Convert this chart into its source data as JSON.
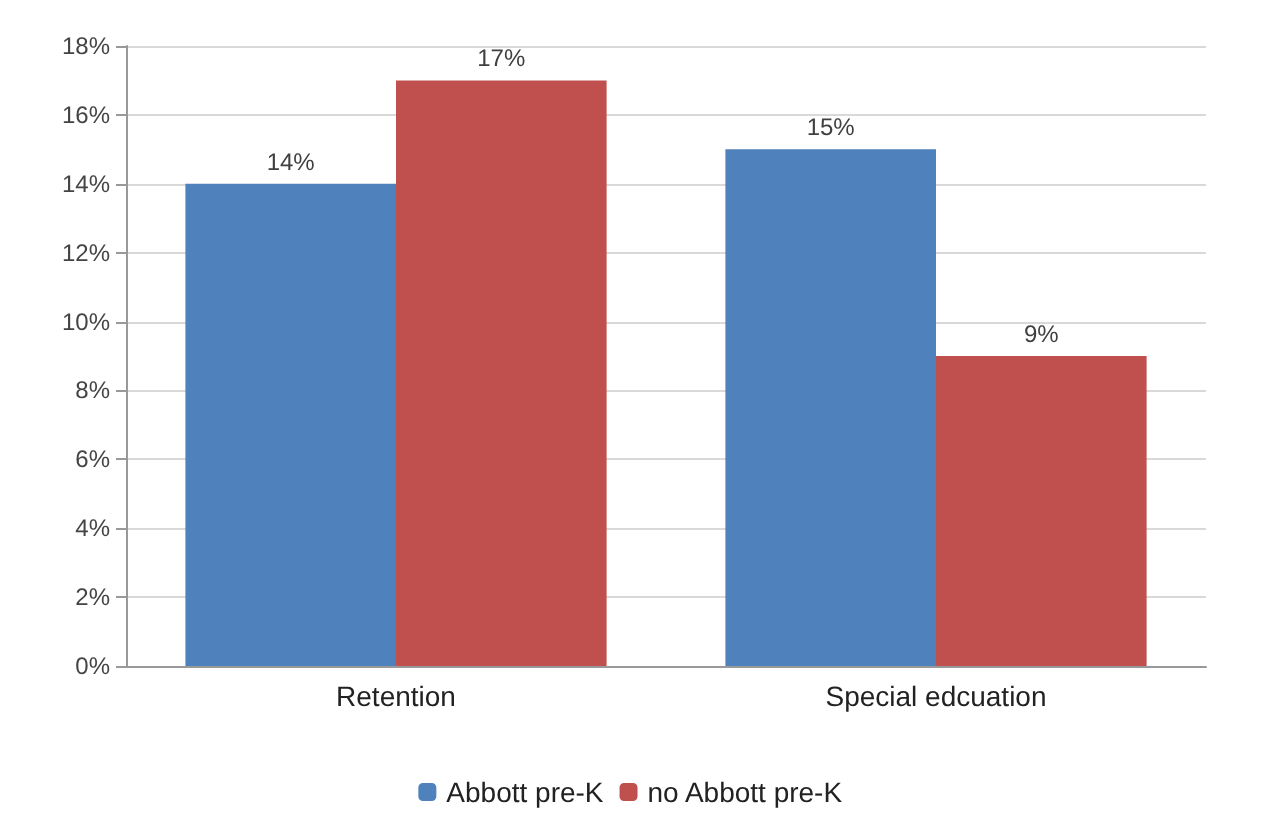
{
  "chart_data": {
    "type": "bar",
    "categories": [
      "Retention",
      "Special edcuation"
    ],
    "series": [
      {
        "name": "Abbott pre-K",
        "color": "#4f81bd",
        "values": [
          14,
          15
        ],
        "value_labels": [
          "14%",
          "15%"
        ]
      },
      {
        "name": "no Abbott pre-K",
        "color": "#c0504d",
        "values": [
          17,
          9
        ],
        "value_labels": [
          "17%",
          "9%"
        ]
      }
    ],
    "ylim": [
      0,
      18
    ],
    "yticks": [
      {
        "value": 0,
        "label": "0%"
      },
      {
        "value": 2,
        "label": "2%"
      },
      {
        "value": 4,
        "label": "4%"
      },
      {
        "value": 6,
        "label": "6%"
      },
      {
        "value": 8,
        "label": "8%"
      },
      {
        "value": 10,
        "label": "10%"
      },
      {
        "value": 12,
        "label": "12%"
      },
      {
        "value": 14,
        "label": "14%"
      },
      {
        "value": 16,
        "label": "16%"
      },
      {
        "value": 18,
        "label": "18%"
      }
    ],
    "grid": "y",
    "legend": "bottom"
  }
}
